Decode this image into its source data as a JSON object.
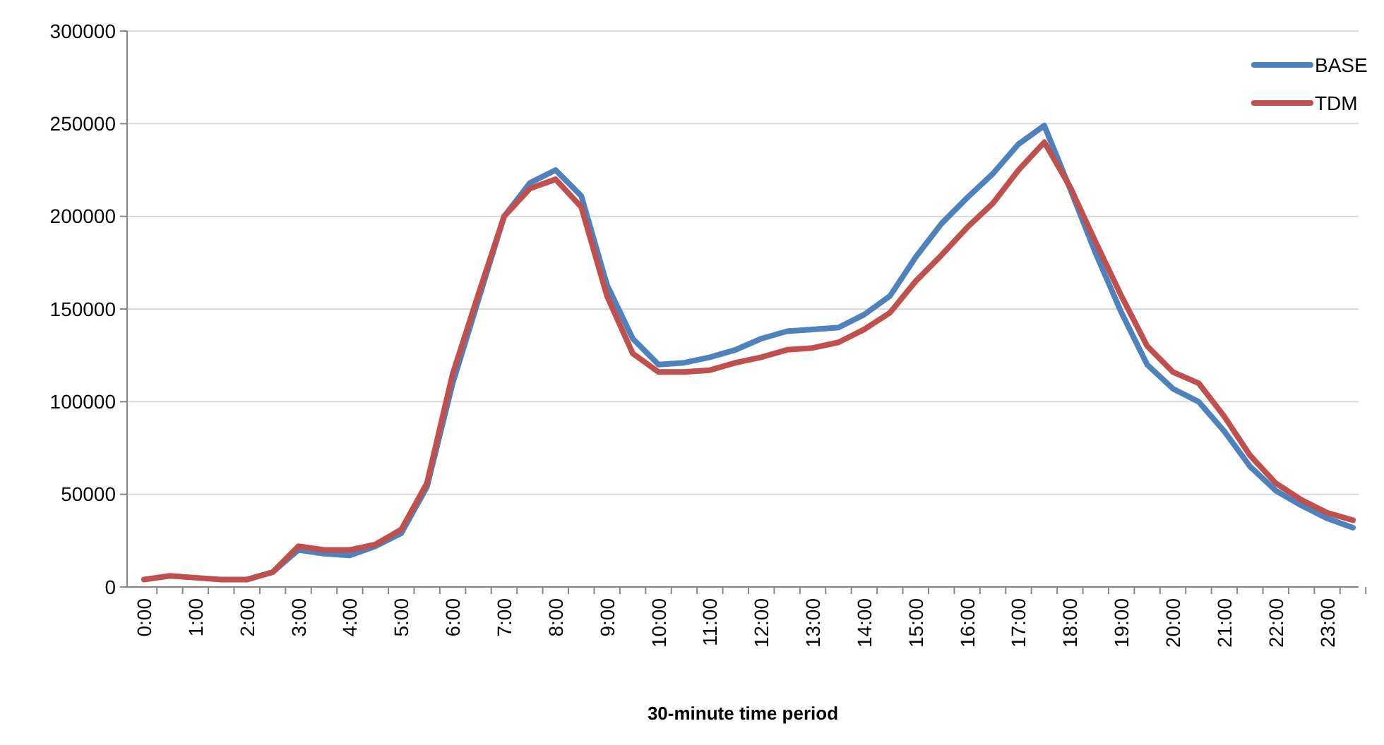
{
  "chart_data": {
    "type": "line",
    "xlabel": "30-minute time period",
    "categories": [
      "0:00",
      null,
      "1:00",
      null,
      "2:00",
      null,
      "3:00",
      null,
      "4:00",
      null,
      "5:00",
      null,
      "6:00",
      null,
      "7:00",
      null,
      "8:00",
      null,
      "9:00",
      null,
      "10:00",
      null,
      "11:00",
      null,
      "12:00",
      null,
      "13:00",
      null,
      "14:00",
      null,
      "15:00",
      null,
      "16:00",
      null,
      "17:00",
      null,
      "18:00",
      null,
      "19:00",
      null,
      "20:00",
      null,
      "21:00",
      null,
      "22:00",
      null,
      "23:00",
      null
    ],
    "series": [
      {
        "name": "BASE",
        "color": "#4f81bd",
        "values": [
          null,
          null,
          null,
          null,
          4000,
          8000,
          20000,
          18000,
          17000,
          22000,
          29000,
          54000,
          110000,
          155000,
          200000,
          218000,
          225000,
          211000,
          163000,
          134000,
          120000,
          121000,
          124000,
          128000,
          134000,
          138000,
          139000,
          140000,
          147000,
          157000,
          178000,
          196000,
          210000,
          223000,
          239000,
          249000,
          215000,
          180000,
          148000,
          120000,
          107000,
          100000,
          84000,
          65000,
          52000,
          44000,
          37000,
          32000
        ]
      },
      {
        "name": "TDM",
        "color": "#c0504d",
        "values": [
          4000,
          6000,
          5000,
          4000,
          4000,
          8000,
          22000,
          20000,
          20000,
          23000,
          31000,
          56000,
          115000,
          158000,
          200000,
          215000,
          220000,
          205000,
          157000,
          126000,
          116000,
          116000,
          117000,
          121000,
          124000,
          128000,
          129000,
          132000,
          139000,
          148000,
          165000,
          179000,
          194000,
          207000,
          225000,
          240000,
          216000,
          186000,
          157000,
          130000,
          116000,
          110000,
          92000,
          71000,
          56000,
          47000,
          40000,
          36000
        ]
      }
    ],
    "ylim": [
      0,
      300000
    ],
    "yticks": [
      0,
      50000,
      100000,
      150000,
      200000,
      250000,
      300000
    ],
    "grid": "y",
    "legend": "top right",
    "marker": "none",
    "line_style": "solid"
  }
}
